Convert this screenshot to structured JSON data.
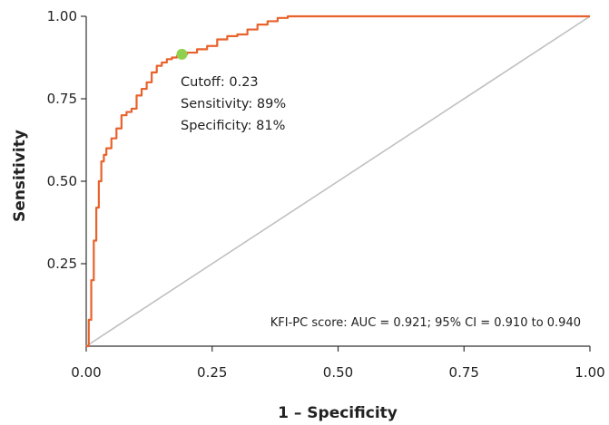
{
  "chart_data": {
    "type": "line",
    "xlabel": "1 – Specificity",
    "ylabel": "Sensitivity",
    "xlim": [
      0,
      1
    ],
    "ylim": [
      0,
      1
    ],
    "x_ticks": [
      "0.00",
      "0.25",
      "0.50",
      "0.75",
      "1.00"
    ],
    "y_ticks": [
      "0.25",
      "0.50",
      "0.75",
      "1.00"
    ],
    "series": [
      {
        "name": "KFI-PC score",
        "color": "#e8622c",
        "x": [
          0.0,
          0.005,
          0.01,
          0.015,
          0.02,
          0.025,
          0.03,
          0.035,
          0.04,
          0.05,
          0.06,
          0.07,
          0.08,
          0.09,
          0.1,
          0.11,
          0.12,
          0.13,
          0.14,
          0.15,
          0.16,
          0.17,
          0.18,
          0.19,
          0.2,
          0.22,
          0.24,
          0.26,
          0.28,
          0.3,
          0.32,
          0.34,
          0.36,
          0.38,
          0.4,
          0.5,
          0.6,
          0.7,
          0.8,
          0.9,
          1.0
        ],
        "y": [
          0.0,
          0.08,
          0.2,
          0.32,
          0.42,
          0.5,
          0.56,
          0.58,
          0.6,
          0.63,
          0.66,
          0.7,
          0.71,
          0.72,
          0.76,
          0.78,
          0.8,
          0.83,
          0.85,
          0.86,
          0.87,
          0.875,
          0.88,
          0.885,
          0.89,
          0.9,
          0.91,
          0.93,
          0.94,
          0.945,
          0.96,
          0.975,
          0.985,
          0.995,
          1.0,
          1.0,
          1.0,
          1.0,
          1.0,
          1.0,
          1.0
        ]
      },
      {
        "name": "",
        "color": "#c0c0c0",
        "x": [
          0,
          1
        ],
        "y": [
          0,
          1
        ]
      }
    ],
    "cutoff_point": {
      "x": 0.19,
      "y": 0.885,
      "color": "#8fd14f"
    },
    "annotations": [
      "Cutoff: 0.23",
      "Sensitivity: 89%",
      "Specificity: 81%"
    ],
    "legend_text": "KFI-PC score: AUC = 0.921; 95% CI = 0.910 to 0.940",
    "grid": false
  }
}
